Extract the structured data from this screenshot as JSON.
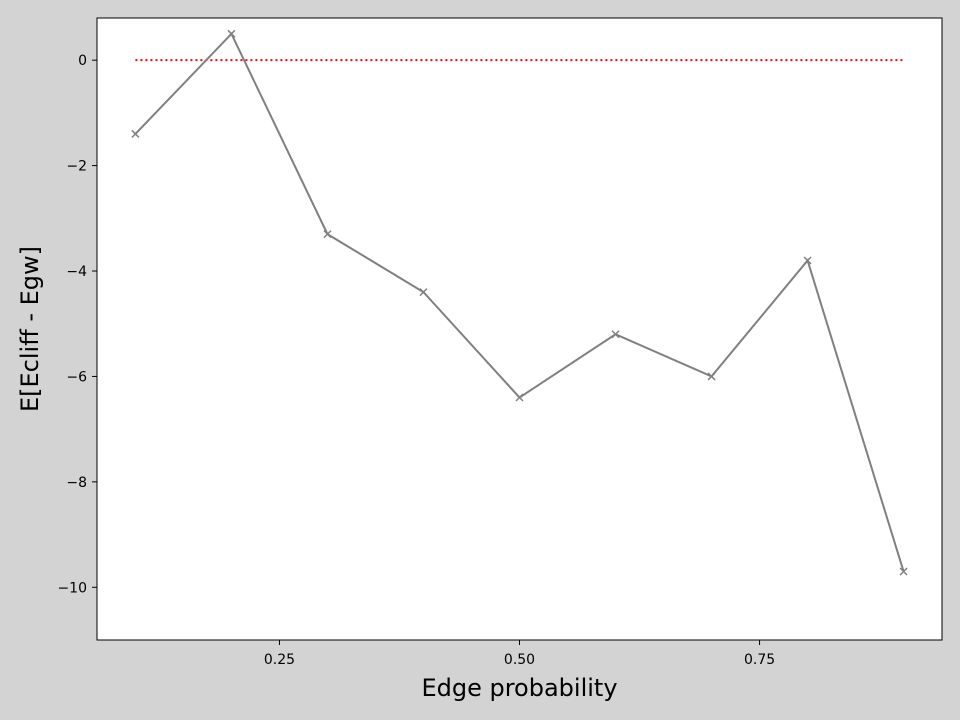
{
  "chart_data": {
    "type": "line",
    "title": "",
    "xlabel": "Edge probability",
    "ylabel": "E[Ecliff - Egw]",
    "xlim": [
      0.06,
      0.94
    ],
    "ylim": [
      -11.0,
      0.8
    ],
    "xticks": [
      0.25,
      0.5,
      0.75
    ],
    "xtick_labels": [
      "0.25",
      "0.50",
      "0.75"
    ],
    "yticks": [
      0,
      -2,
      -4,
      -6,
      -8,
      -10
    ],
    "ytick_labels": [
      "0",
      "−2",
      "−4",
      "−6",
      "−8",
      "−10"
    ],
    "grid": false,
    "legend": "none",
    "series": [
      {
        "x": [
          0.1,
          0.2,
          0.3,
          0.4,
          0.5,
          0.6,
          0.7,
          0.8,
          0.9
        ],
        "values": [
          -1.4,
          0.5,
          -3.3,
          -4.4,
          -6.4,
          -5.2,
          -6.0,
          -3.8,
          -9.7
        ],
        "color": "#808080",
        "marker": "x",
        "line_style": "solid"
      }
    ],
    "reference_line": {
      "x": [
        0.1,
        0.9
      ],
      "values": [
        0,
        0
      ],
      "color": "#ff0000",
      "line_style": "dotted"
    }
  }
}
